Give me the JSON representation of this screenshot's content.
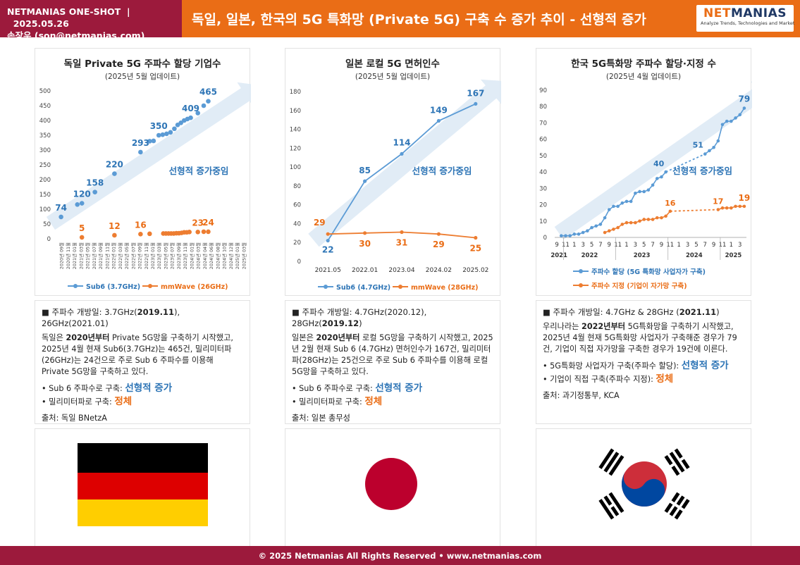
{
  "header": {
    "brand": "NETMANIAS ONE-SHOT",
    "sep": "|",
    "date": "2025.05.26",
    "author": "손장우 (son@netmanias.com)",
    "title": "독일, 일본, 한국의 5G 특화망 (Private 5G) 구축 수 증가 추이 - 선형적 증가",
    "logo_a": "NET",
    "logo_b": "MANIAS",
    "logo_tag": "Analyze Trends, Technologies and Market"
  },
  "footer": {
    "text": "© 2025 Netmanias All Rights Reserved • www.netmanias.com"
  },
  "colors": {
    "sub6": "#5b9bd5",
    "mmwave": "#ed7d31",
    "header_left": "#9c1a3c",
    "header_right": "#ea6d16"
  },
  "chart_data": [
    {
      "type": "scatter",
      "title": "독일 Private 5G 주파수 할당 기업수",
      "subtitle": "(2025년 5월 업데이트)",
      "annotation": "선형적 증가중임",
      "ylim": [
        0,
        500
      ],
      "yticks": [
        0,
        50,
        100,
        150,
        200,
        250,
        300,
        350,
        400,
        450,
        500
      ],
      "x_labels": [
        "2020년 09월",
        "2020년 11월",
        "2021년 01월",
        "2021년 03월",
        "2021년 05월",
        "2021년 07월",
        "2021년 09월",
        "2021년 11월",
        "2022년 01월",
        "2022년 03월",
        "2022년 05월",
        "2022년 07월",
        "2022년 09월",
        "2022년 11월",
        "2023년 01월",
        "2023년 03월",
        "2023년 05월",
        "2023년 07월",
        "2023년 09월",
        "2023년 11월",
        "2024년 01월",
        "2024년 03월",
        "2024년 04월",
        "2024년 06월",
        "2024년 08월",
        "2024년 10월",
        "2024년 12월",
        "2025년 01월",
        "2025년 03월"
      ],
      "series": [
        {
          "name": "Sub6 (3.7GHz)",
          "color": "#5b9bd5",
          "points": [
            [
              0,
              74
            ],
            [
              2.5,
              116
            ],
            [
              3.2,
              120
            ],
            [
              5.2,
              158
            ],
            [
              8.2,
              220
            ],
            [
              12.2,
              293
            ],
            [
              13.6,
              330
            ],
            [
              14.2,
              331
            ],
            [
              15.0,
              350
            ],
            [
              15.6,
              352
            ],
            [
              16.2,
              355
            ],
            [
              16.8,
              360
            ],
            [
              17.4,
              372
            ],
            [
              17.9,
              385
            ],
            [
              18.4,
              392
            ],
            [
              18.9,
              400
            ],
            [
              19.4,
              405
            ],
            [
              19.9,
              409
            ],
            [
              21.0,
              425
            ],
            [
              21.9,
              450
            ],
            [
              22.6,
              465
            ]
          ],
          "labels": [
            {
              "i": 0,
              "text": "74"
            },
            {
              "i": 2,
              "text": "120"
            },
            {
              "i": 3,
              "text": "158"
            },
            {
              "i": 4,
              "text": "220"
            },
            {
              "i": 5,
              "text": "293"
            },
            {
              "i": 8,
              "text": "350"
            },
            {
              "i": 17,
              "text": "409"
            },
            {
              "i": 20,
              "text": "465"
            }
          ]
        },
        {
          "name": "mmWave (26GHz)",
          "color": "#ed7d31",
          "points": [
            [
              3.2,
              5
            ],
            [
              8.2,
              12
            ],
            [
              12.2,
              16
            ],
            [
              13.6,
              17
            ],
            [
              15.7,
              18
            ],
            [
              16.1,
              18
            ],
            [
              16.5,
              18
            ],
            [
              16.9,
              18
            ],
            [
              17.3,
              18
            ],
            [
              17.7,
              19
            ],
            [
              18.1,
              19
            ],
            [
              18.5,
              20
            ],
            [
              18.9,
              22
            ],
            [
              19.3,
              22
            ],
            [
              19.7,
              23
            ],
            [
              21.0,
              23
            ],
            [
              21.9,
              24
            ],
            [
              22.6,
              24
            ]
          ],
          "labels": [
            {
              "i": 0,
              "text": "5"
            },
            {
              "i": 1,
              "text": "12"
            },
            {
              "i": 2,
              "text": "16"
            },
            {
              "i": 15,
              "text": "23"
            },
            {
              "i": 17,
              "text": "24"
            }
          ]
        }
      ]
    },
    {
      "type": "line",
      "title": "일본 로컬 5G 면허인수",
      "subtitle": "(2025년 5월 업데이트)",
      "annotation": "선형적 증가중임",
      "ylim": [
        0,
        180
      ],
      "yticks": [
        0,
        20,
        40,
        60,
        80,
        100,
        120,
        140,
        160,
        180
      ],
      "categories": [
        "2021.05",
        "2022.01",
        "2023.04",
        "2024.02",
        "2025.02"
      ],
      "series": [
        {
          "name": "Sub6 (4.7GHz)",
          "color": "#5b9bd5",
          "values": [
            22,
            85,
            114,
            149,
            167
          ]
        },
        {
          "name": "mmWave (28GHz)",
          "color": "#ed7d31",
          "values": [
            29,
            30,
            31,
            29,
            25
          ]
        }
      ]
    },
    {
      "type": "line",
      "title": "한국 5G특화망 주파수 할당·지정 수",
      "subtitle": "(2025년 4월 업데이트)",
      "annotation": "선형적 증가중임",
      "ylim": [
        0,
        90
      ],
      "yticks": [
        0,
        10,
        20,
        30,
        40,
        50,
        60,
        70,
        80,
        90
      ],
      "x_month_ticks": [
        "9",
        "11",
        "1",
        "3",
        "5",
        "7",
        "9",
        "11",
        "1",
        "3",
        "5",
        "7",
        "9",
        "11",
        "1",
        "3",
        "5",
        "7",
        "9",
        "11",
        "1",
        "3"
      ],
      "years": [
        "2021",
        "2022",
        "2023",
        "2024",
        "2025"
      ],
      "series": [
        {
          "name": "주파수 할당 (5G 특화망 사업자가 구축)",
          "color": "#5b9bd5",
          "points": [
            [
              1,
              1
            ],
            [
              2,
              1
            ],
            [
              3,
              1
            ],
            [
              4,
              2
            ],
            [
              5,
              2
            ],
            [
              6,
              3
            ],
            [
              7,
              4
            ],
            [
              8,
              6
            ],
            [
              9,
              7
            ],
            [
              10,
              8
            ],
            [
              11,
              12
            ],
            [
              12,
              17
            ],
            [
              13,
              19
            ],
            [
              14,
              19
            ],
            [
              15,
              21
            ],
            [
              16,
              22
            ],
            [
              17,
              22
            ],
            [
              18,
              27
            ],
            [
              19,
              28
            ],
            [
              20,
              28
            ],
            [
              21,
              29
            ],
            [
              22,
              32
            ],
            [
              23,
              36
            ],
            [
              24,
              37
            ],
            [
              25,
              40
            ],
            [
              34,
              51
            ],
            [
              35,
              53
            ],
            [
              36,
              55
            ],
            [
              37,
              59
            ],
            [
              38,
              69
            ],
            [
              39,
              71
            ],
            [
              40,
              71
            ],
            [
              41,
              73
            ],
            [
              42,
              75
            ],
            [
              43,
              79
            ]
          ],
          "dashed": [
            [
              25,
              34
            ]
          ],
          "labels": [
            {
              "i": 24,
              "text": "40"
            },
            {
              "i": 25,
              "text": "51"
            },
            {
              "i": 34,
              "text": "79"
            }
          ]
        },
        {
          "name": "주파수 지정 (기업이 자가망 구축)",
          "color": "#ed7d31",
          "points": [
            [
              11,
              3
            ],
            [
              12,
              4
            ],
            [
              13,
              5
            ],
            [
              14,
              6
            ],
            [
              15,
              8
            ],
            [
              16,
              9
            ],
            [
              17,
              9
            ],
            [
              18,
              9
            ],
            [
              19,
              10
            ],
            [
              20,
              11
            ],
            [
              21,
              11
            ],
            [
              22,
              11
            ],
            [
              23,
              12
            ],
            [
              24,
              12
            ],
            [
              25,
              13
            ],
            [
              26,
              16
            ],
            [
              37,
              17
            ],
            [
              38,
              18
            ],
            [
              39,
              18
            ],
            [
              40,
              18
            ],
            [
              41,
              19
            ],
            [
              42,
              19
            ],
            [
              43,
              19
            ]
          ],
          "dashed": [
            [
              26,
              37
            ]
          ],
          "labels": [
            {
              "i": 15,
              "text": "16"
            },
            {
              "i": 16,
              "text": "17"
            },
            {
              "i": 22,
              "text": "19"
            }
          ]
        }
      ]
    }
  ],
  "info": [
    {
      "open_pre": "주파수 개방일: 3.7GHz(",
      "open_b": "2019.11",
      "open_post": "), 26GHz(2021.01)",
      "b_pre": "독일은 ",
      "b_bold": "2020년부터",
      "b_post": " Private 5G망을 구축하기 시작했고,  2025년 4월 현재 Sub6(3.7GHz)는 465건, 밀리미터파(26GHz)는 24건으로 주로 Sub 6 주파수를 이용해 Private 5G망을 구축하고 있다.",
      "l1": "• Sub 6 주파수로 구축: ",
      "v1": "선형적 증가",
      "l2": "• 밀리미터파로 구축: ",
      "v2": "정체",
      "src": "출처: 독일 BNetzA"
    },
    {
      "open_pre": "주파수 개방일: 4.7GHz(2020.12), 28GHz(",
      "open_b": "2019.12",
      "open_post": ")",
      "b_pre": "일본은 ",
      "b_bold": "2020년부터",
      "b_post": " 로컬 5G망을 구축하기 시작했고, 2025년 2월 현재 Sub 6 (4.7GHz) 면허인수가 167건, 밀리미터파(28GHz)는 25건으로 주로 Sub 6 주파수를 이용해 로컬 5G망을 구축하고 있다.",
      "l1": "• Sub 6 주파수로 구축: ",
      "v1": "선형적 증가",
      "l2": "• 밀리미터파로 구축: ",
      "v2": "정체",
      "src": "출처: 일본 총무성"
    },
    {
      "open_pre": "주파수 개방일: 4.7GHz & 28GHz (",
      "open_b": "2021.11",
      "open_post": ")",
      "b_pre": "우리나라는 ",
      "b_bold": "2022년부터",
      "b_post": " 5G특화망을 구축하기 시작했고, 2025년 4월 현재 5G특화망 사업자가 구축해준 경우가 79건, 기업이 직접 자가망을 구축한 경우가 19건에 이른다.",
      "l1": "• 5G특화망 사업자가 구축(주파수 할당): ",
      "v1": "선형적 증가",
      "l2": "• 기업이 직접 구축(주파수 지정): ",
      "v2": "정체",
      "src": "출처: 과기정통부, KCA"
    }
  ]
}
